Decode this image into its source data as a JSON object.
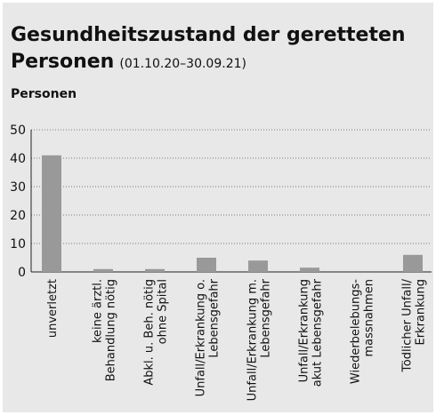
{
  "chart_data": {
    "type": "bar",
    "title": "Gesundheitszustand der geretteten",
    "title_line2": "Personen",
    "subtitle": "(01.10.20–30.09.21)",
    "y_label": "Personen",
    "categories": [
      "unverletzt",
      "keine ärztl.\nBehandlung nötig",
      "Abkl. u. Beh. nötig\nohne Spital",
      "Unfall/Erkrankung o.\nLebensgefahr",
      "Unfall/Erkrankung m.\nLebensgefahr",
      "Unfall/Erkrankung\nakut Lebensgefahr",
      "Wiederbelebungs-\nmassnahmen",
      "Tödlicher Unfall/\nErkrankung"
    ],
    "values": [
      41,
      1,
      1,
      5,
      4,
      1.5,
      0,
      6
    ],
    "color": "#999999",
    "ylim": [
      0,
      50
    ],
    "yticks": [
      0,
      10,
      20,
      30,
      40,
      50
    ],
    "grid": true
  }
}
